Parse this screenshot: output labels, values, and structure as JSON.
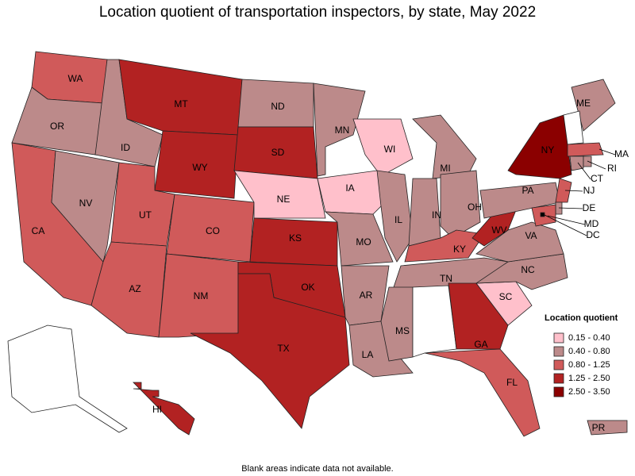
{
  "title": "Location quotient of transportation inspectors, by state, May 2022",
  "note": "Blank areas indicate data not available.",
  "legend": {
    "title": "Location quotient",
    "items": [
      {
        "label": "0.15 - 0.40",
        "color": "#ffc0cb"
      },
      {
        "label": "0.40 - 0.80",
        "color": "#bc8a8a"
      },
      {
        "label": "0.80 - 1.25",
        "color": "#d05a5a"
      },
      {
        "label": "1.25 - 2.50",
        "color": "#b22222"
      },
      {
        "label": "2.50 - 3.50",
        "color": "#8b0000"
      }
    ]
  },
  "states": [
    {
      "label": "WA",
      "color": "#d05a5a"
    },
    {
      "label": "OR",
      "color": "#bc8a8a"
    },
    {
      "label": "CA",
      "color": "#d05a5a"
    },
    {
      "label": "NV",
      "color": "#bc8a8a"
    },
    {
      "label": "ID",
      "color": "#bc8a8a"
    },
    {
      "label": "MT",
      "color": "#b22222"
    },
    {
      "label": "WY",
      "color": "#b22222"
    },
    {
      "label": "UT",
      "color": "#d05a5a"
    },
    {
      "label": "AZ",
      "color": "#d05a5a"
    },
    {
      "label": "CO",
      "color": "#d05a5a"
    },
    {
      "label": "NM",
      "color": "#d05a5a"
    },
    {
      "label": "ND",
      "color": "#bc8a8a"
    },
    {
      "label": "SD",
      "color": "#b22222"
    },
    {
      "label": "NE",
      "color": "#ffc0cb"
    },
    {
      "label": "KS",
      "color": "#b22222"
    },
    {
      "label": "OK",
      "color": "#b22222"
    },
    {
      "label": "TX",
      "color": "#b22222"
    },
    {
      "label": "MN",
      "color": "#bc8a8a"
    },
    {
      "label": "IA",
      "color": "#ffc0cb"
    },
    {
      "label": "MO",
      "color": "#bc8a8a"
    },
    {
      "label": "AR",
      "color": "#bc8a8a"
    },
    {
      "label": "LA",
      "color": "#bc8a8a"
    },
    {
      "label": "WI",
      "color": "#ffc0cb"
    },
    {
      "label": "IL",
      "color": "#bc8a8a"
    },
    {
      "label": "MI",
      "color": "#bc8a8a"
    },
    {
      "label": "IN",
      "color": "#bc8a8a"
    },
    {
      "label": "OH",
      "color": "#bc8a8a"
    },
    {
      "label": "KY",
      "color": "#d05a5a"
    },
    {
      "label": "TN",
      "color": "#bc8a8a"
    },
    {
      "label": "MS",
      "color": "#bc8a8a"
    },
    {
      "label": null,
      "color": "#ffffff"
    },
    {
      "label": "GA",
      "color": "#b22222"
    },
    {
      "label": "FL",
      "color": "#d05a5a"
    },
    {
      "label": "SC",
      "color": "#ffc0cb"
    },
    {
      "label": "NC",
      "color": "#bc8a8a"
    },
    {
      "label": "VA",
      "color": "#bc8a8a"
    },
    {
      "label": "WV",
      "color": "#b22222"
    },
    {
      "label": "PA",
      "color": "#bc8a8a"
    },
    {
      "label": "NY",
      "color": "#8b0000"
    },
    {
      "label": "NJ",
      "color": "#d05a5a"
    },
    {
      "label": "ME",
      "color": "#bc8a8a"
    },
    {
      "label": null,
      "color": "#ffffff"
    },
    {
      "label": "MA",
      "color": "#d05a5a"
    },
    {
      "label": "CT",
      "color": "#bc8a8a"
    },
    {
      "label": "RI",
      "color": "#bc8a8a"
    },
    {
      "label": "DE",
      "color": "#bc8a8a"
    },
    {
      "label": "MD",
      "color": "#d05a5a"
    },
    {
      "label": "DC",
      "color": "#000000"
    },
    {
      "label": "PR",
      "color": "#bc8a8a"
    },
    {
      "label": "HI",
      "color": "#b22222"
    },
    {
      "label": null,
      "color": "#ffffff"
    }
  ]
}
